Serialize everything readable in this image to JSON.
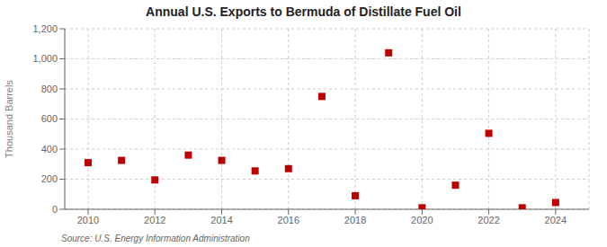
{
  "chart_data": {
    "type": "scatter",
    "title": "Annual U.S. Exports to Bermuda of Distillate Fuel Oil",
    "ylabel": "Thousand Barrels",
    "source": "Source: U.S. Energy Information Administration",
    "x": [
      2010,
      2011,
      2012,
      2013,
      2014,
      2015,
      2016,
      2017,
      2018,
      2019,
      2020,
      2021,
      2022,
      2023,
      2024
    ],
    "values": [
      310,
      325,
      195,
      360,
      325,
      255,
      270,
      750,
      90,
      1040,
      10,
      160,
      505,
      10,
      45
    ],
    "color": "#bb0000",
    "marker": "square",
    "xlim": [
      2009.3,
      2025.0
    ],
    "xticks": [
      2010,
      2012,
      2014,
      2016,
      2018,
      2020,
      2022,
      2024
    ],
    "ylim": [
      0,
      1200
    ],
    "yticks": [
      0,
      200,
      400,
      600,
      800,
      {
        "value": 1000,
        "label": "1,000"
      },
      {
        "value": 1200,
        "label": "1,200"
      }
    ],
    "grid": true
  }
}
